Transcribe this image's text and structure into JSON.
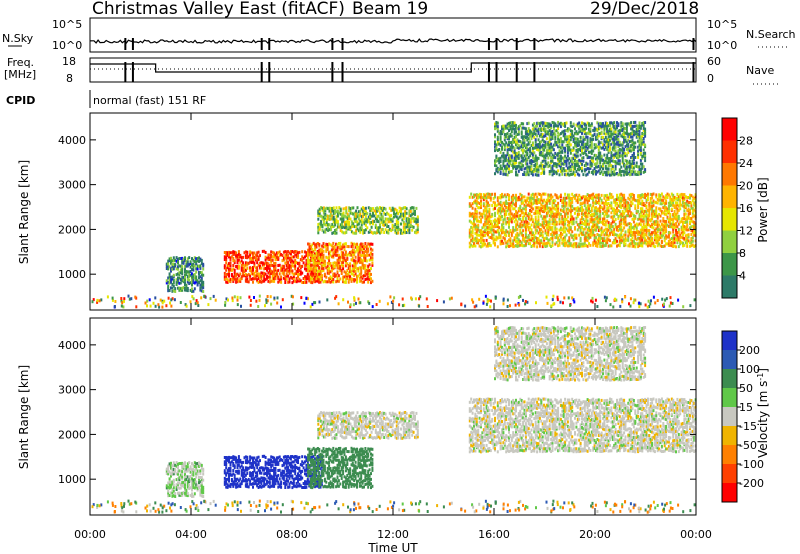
{
  "header": {
    "station": "Christmas Valley East (fitACF)",
    "beam": "Beam 19",
    "date": "29/Dec/2018"
  },
  "noise_panel": {
    "left_label": "N.Sky",
    "right_label": "N.Search",
    "left_ticks": [
      "10^5",
      "10^0"
    ],
    "right_ticks": [
      "10^5",
      "10^0"
    ]
  },
  "freq_panel": {
    "left_label_1": "Freq.",
    "left_label_2": "[MHz]",
    "right_label": "Nave",
    "left_ticks": [
      "18",
      "8"
    ],
    "right_ticks": [
      "60",
      "0"
    ]
  },
  "cpid": {
    "label": "CPID",
    "mode": "normal (fast) 151 RF"
  },
  "axes": {
    "ylabel": "Slant Range [km]",
    "yticks": [
      "4000",
      "3000",
      "2000",
      "1000"
    ],
    "xlabel": "Time UT",
    "xticks": [
      "00:00",
      "04:00",
      "08:00",
      "12:00",
      "16:00",
      "20:00",
      "00:00"
    ]
  },
  "power_scale": {
    "label": "Power [dB]",
    "ticks": [
      "28",
      "24",
      "20",
      "16",
      "12",
      "8",
      "4"
    ],
    "colors": [
      "#ff0000",
      "#ff3000",
      "#ff7800",
      "#ffb400",
      "#e6e600",
      "#90d040",
      "#3c9648",
      "#2d7a68",
      "#284fa0",
      "#0000ff"
    ]
  },
  "velocity_scale": {
    "label": "Velocity [m s",
    "label_sup": "-1",
    "label_end": "]",
    "ticks": [
      "200",
      "100",
      "50",
      "15",
      "-15",
      "-50",
      "-100",
      "-200"
    ],
    "colors": [
      "#1e32c8",
      "#2c5ab4",
      "#3c8c50",
      "#60c848",
      "#c8c8c0",
      "#f0b400",
      "#ff8000",
      "#ff4000",
      "#ff0000"
    ]
  },
  "chart_data": {
    "type": "heatmap",
    "title": "Christmas Valley East (fitACF) Beam 19 29/Dec/2018",
    "xlabel": "Time UT",
    "ylabel": "Slant Range [km]",
    "xlim": [
      0,
      24
    ],
    "ylim": [
      200,
      4600
    ],
    "panels": [
      "Power [dB]",
      "Velocity [m s-1]"
    ],
    "power_colorbar_range": [
      0,
      32
    ],
    "velocity_colorbar_range": [
      -250,
      250
    ],
    "echo_regions": [
      {
        "t_start": 5.3,
        "t_end": 9.2,
        "range_start": 800,
        "range_end": 1500,
        "power": 28,
        "velocity": 200
      },
      {
        "t_start": 8.6,
        "t_end": 11.2,
        "range_start": 800,
        "range_end": 1700,
        "power": 24,
        "velocity": 50
      },
      {
        "t_start": 9.0,
        "t_end": 13.0,
        "range_start": 1900,
        "range_end": 2500,
        "power": 14,
        "velocity": 0
      },
      {
        "t_start": 15.0,
        "t_end": 24.0,
        "range_start": 1600,
        "range_end": 2800,
        "power": 20,
        "velocity": 0
      },
      {
        "t_start": 16.0,
        "t_end": 22.0,
        "range_start": 3200,
        "range_end": 4400,
        "power": 10,
        "velocity": 0
      },
      {
        "t_start": 3.0,
        "t_end": 4.5,
        "range_start": 600,
        "range_end": 1400,
        "power": 8,
        "velocity": 15
      }
    ]
  }
}
